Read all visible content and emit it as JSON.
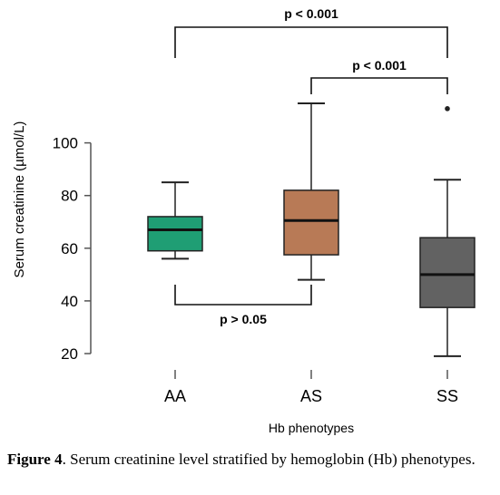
{
  "chart_data": {
    "type": "box",
    "xlabel": "Hb phenotypes",
    "ylabel": "Serum creatinine (µmol/L)",
    "y_ticks": [
      20,
      40,
      60,
      80,
      100
    ],
    "categories": [
      "AA",
      "AS",
      "SS"
    ],
    "boxes": [
      {
        "category": "AA",
        "whisker_low": 56,
        "q1": 59,
        "median": 67,
        "q3": 72,
        "whisker_high": 85,
        "outliers": [],
        "color": "#1f9e74"
      },
      {
        "category": "AS",
        "whisker_low": 48,
        "q1": 57.5,
        "median": 70.5,
        "q3": 82,
        "whisker_high": 115,
        "outliers": [],
        "color": "#b87a56"
      },
      {
        "category": "SS",
        "whisker_low": 19,
        "q1": 37.5,
        "median": 50,
        "q3": 64,
        "whisker_high": 86,
        "outliers": [
          113
        ],
        "color": "#626262"
      }
    ],
    "annotations": [
      {
        "text": "p < 0.001",
        "from": "AA",
        "to": "SS"
      },
      {
        "text": "p < 0.001",
        "from": "AS",
        "to": "SS"
      },
      {
        "text": "p > 0.05",
        "from": "AA",
        "to": "AS"
      }
    ],
    "grid": false
  },
  "caption": {
    "label": "Figure 4",
    "text": ". Serum creatinine level stratified by hemoglobin (Hb) phenotypes."
  }
}
